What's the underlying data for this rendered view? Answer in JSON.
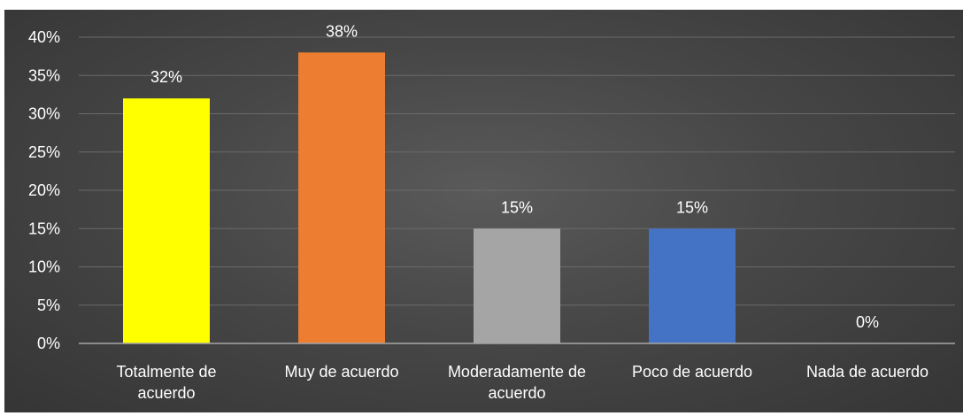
{
  "chart_data": {
    "type": "bar",
    "categories": [
      [
        "Totalmente de",
        "acuerdo"
      ],
      [
        "Muy de acuerdo"
      ],
      [
        "Moderadamente de",
        "acuerdo"
      ],
      [
        "Poco de acuerdo"
      ],
      [
        "Nada de acuerdo"
      ]
    ],
    "values": [
      32,
      38,
      15,
      15,
      0
    ],
    "data_labels": [
      "32%",
      "38%",
      "15%",
      "15%",
      "0%"
    ],
    "bar_colors": [
      "#FFFF00",
      "#ED7D31",
      "#A5A5A5",
      "#4472C4",
      "#FFFFFF"
    ],
    "y_ticks": [
      "0%",
      "5%",
      "10%",
      "15%",
      "20%",
      "25%",
      "30%",
      "35%",
      "40%"
    ],
    "ylim": [
      0,
      40
    ],
    "y_step": 5,
    "grid": true,
    "legend": "none",
    "title": "",
    "xlabel": "",
    "ylabel": ""
  }
}
